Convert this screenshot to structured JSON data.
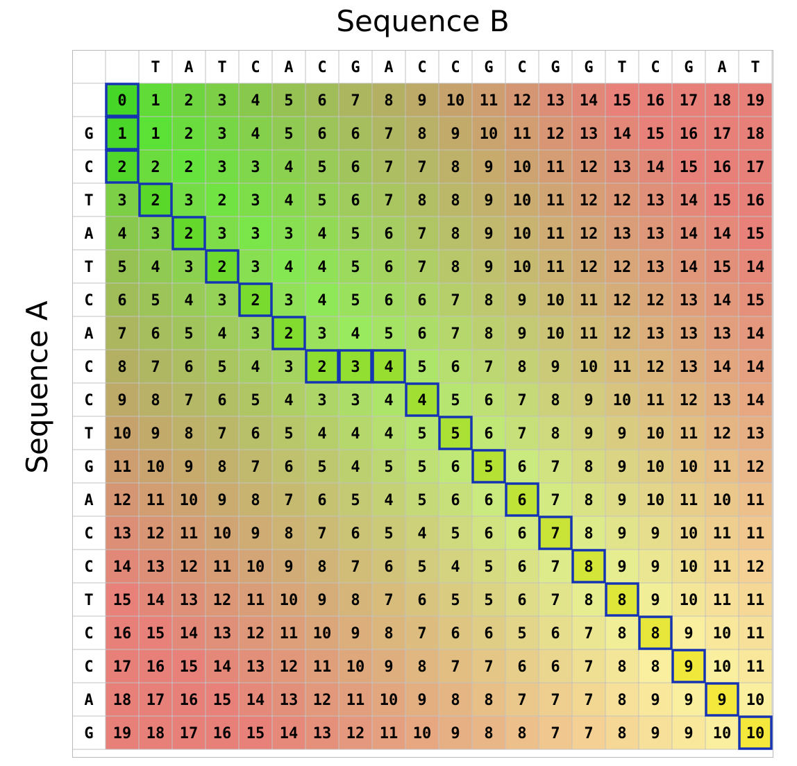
{
  "title_top": "Sequence  B",
  "title_side": "Sequence  A",
  "sequence_b": [
    "T",
    "A",
    "T",
    "C",
    "A",
    "C",
    "G",
    "A",
    "C",
    "C",
    "G",
    "C",
    "G",
    "G",
    "T",
    "C",
    "G",
    "A",
    "T"
  ],
  "sequence_a": [
    "G",
    "C",
    "T",
    "A",
    "T",
    "C",
    "A",
    "C",
    "C",
    "T",
    "G",
    "A",
    "C",
    "C",
    "T",
    "C",
    "C",
    "A",
    "G"
  ],
  "colors": {
    "low": "#52e02f",
    "mid": "#fbf7a0",
    "high": "#e8807a",
    "path_border": "#1434b4",
    "grid_line": "#c2c2c2"
  },
  "matrix": [
    [
      0,
      1,
      2,
      3,
      4,
      5,
      6,
      7,
      8,
      9,
      10,
      11,
      12,
      13,
      14,
      15,
      16,
      17,
      18,
      19
    ],
    [
      1,
      1,
      2,
      3,
      4,
      5,
      6,
      6,
      7,
      8,
      9,
      10,
      11,
      12,
      13,
      14,
      15,
      16,
      17,
      18
    ],
    [
      2,
      2,
      2,
      3,
      3,
      4,
      5,
      6,
      7,
      7,
      8,
      9,
      10,
      11,
      12,
      13,
      14,
      15,
      16,
      17
    ],
    [
      3,
      2,
      3,
      2,
      3,
      4,
      5,
      6,
      7,
      8,
      8,
      9,
      10,
      11,
      12,
      12,
      13,
      14,
      15,
      16
    ],
    [
      4,
      3,
      2,
      3,
      3,
      3,
      4,
      5,
      6,
      7,
      8,
      9,
      10,
      11,
      12,
      13,
      13,
      14,
      14,
      15
    ],
    [
      5,
      4,
      3,
      2,
      3,
      4,
      4,
      5,
      6,
      7,
      8,
      9,
      10,
      11,
      12,
      12,
      13,
      14,
      15,
      14
    ],
    [
      6,
      5,
      4,
      3,
      2,
      3,
      4,
      5,
      6,
      6,
      7,
      8,
      9,
      10,
      11,
      12,
      12,
      13,
      14,
      15
    ],
    [
      7,
      6,
      5,
      4,
      3,
      2,
      3,
      4,
      5,
      6,
      7,
      8,
      9,
      10,
      11,
      12,
      13,
      13,
      13,
      14
    ],
    [
      8,
      7,
      6,
      5,
      4,
      3,
      2,
      3,
      4,
      5,
      6,
      7,
      8,
      9,
      10,
      11,
      12,
      13,
      14,
      14
    ],
    [
      9,
      8,
      7,
      6,
      5,
      4,
      3,
      3,
      4,
      4,
      5,
      6,
      7,
      8,
      9,
      10,
      11,
      12,
      13,
      14
    ],
    [
      10,
      9,
      8,
      7,
      6,
      5,
      4,
      4,
      4,
      5,
      5,
      6,
      7,
      8,
      9,
      9,
      10,
      11,
      12,
      13
    ],
    [
      11,
      10,
      9,
      8,
      7,
      6,
      5,
      4,
      5,
      5,
      6,
      5,
      6,
      7,
      8,
      9,
      10,
      10,
      11,
      12
    ],
    [
      12,
      11,
      10,
      9,
      8,
      7,
      6,
      5,
      4,
      5,
      6,
      6,
      6,
      7,
      8,
      9,
      10,
      11,
      10,
      11
    ],
    [
      13,
      12,
      11,
      10,
      9,
      8,
      7,
      6,
      5,
      4,
      5,
      6,
      6,
      7,
      8,
      9,
      9,
      10,
      11,
      11
    ],
    [
      14,
      13,
      12,
      11,
      10,
      9,
      8,
      7,
      6,
      5,
      4,
      5,
      6,
      7,
      8,
      9,
      9,
      10,
      11,
      12
    ],
    [
      15,
      14,
      13,
      12,
      11,
      10,
      9,
      8,
      7,
      6,
      5,
      5,
      6,
      7,
      8,
      8,
      9,
      10,
      11,
      11
    ],
    [
      16,
      15,
      14,
      13,
      12,
      11,
      10,
      9,
      8,
      7,
      6,
      6,
      5,
      6,
      7,
      8,
      8,
      9,
      10,
      11
    ],
    [
      17,
      16,
      15,
      14,
      13,
      12,
      11,
      10,
      9,
      8,
      7,
      7,
      6,
      6,
      7,
      8,
      8,
      9,
      10,
      11
    ],
    [
      18,
      17,
      16,
      15,
      14,
      13,
      12,
      11,
      10,
      9,
      8,
      8,
      7,
      7,
      7,
      8,
      9,
      9,
      9,
      10
    ],
    [
      19,
      18,
      17,
      16,
      15,
      14,
      13,
      12,
      11,
      10,
      9,
      8,
      8,
      7,
      7,
      8,
      9,
      9,
      10,
      10
    ]
  ],
  "alignment_path": [
    [
      0,
      0
    ],
    [
      1,
      0
    ],
    [
      2,
      0
    ],
    [
      3,
      1
    ],
    [
      4,
      2
    ],
    [
      5,
      3
    ],
    [
      6,
      4
    ],
    [
      7,
      5
    ],
    [
      8,
      6
    ],
    [
      8,
      7
    ],
    [
      8,
      8
    ],
    [
      9,
      9
    ],
    [
      10,
      10
    ],
    [
      11,
      11
    ],
    [
      12,
      12
    ],
    [
      13,
      13
    ],
    [
      14,
      14
    ],
    [
      15,
      15
    ],
    [
      16,
      16
    ],
    [
      17,
      17
    ],
    [
      18,
      18
    ],
    [
      19,
      19
    ]
  ]
}
